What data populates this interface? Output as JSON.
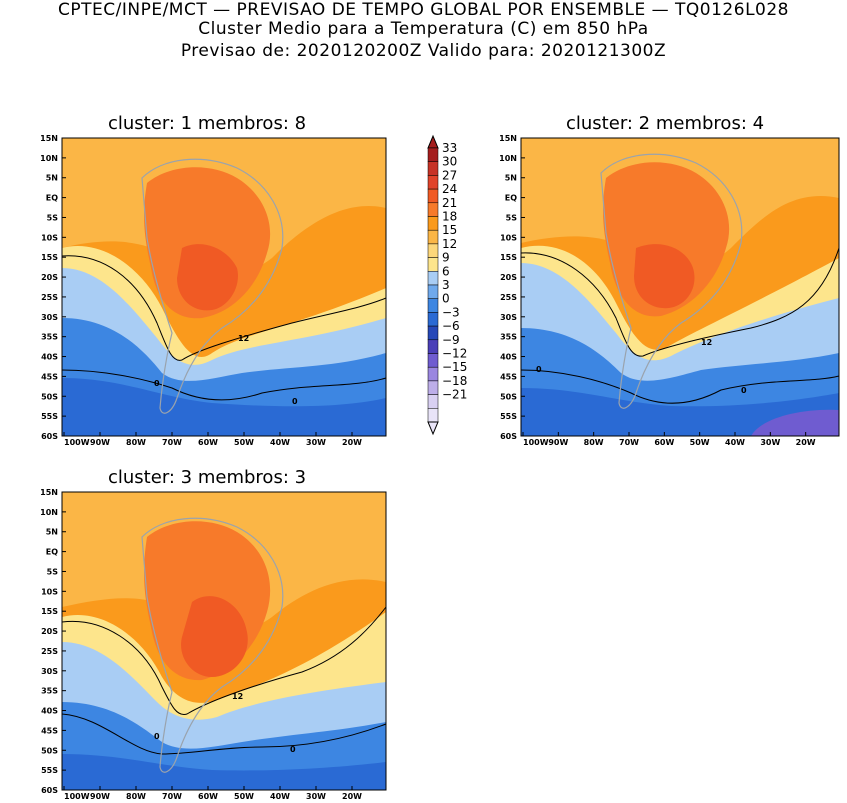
{
  "header": {
    "line1": "CPTEC/INPE/MCT — PREVISAO DE TEMPO GLOBAL POR ENSEMBLE — TQ0126L028",
    "line2": "Cluster Medio para a Temperatura (C) em 850 hPa",
    "line3": "Previsao de: 2020120200Z   Valido para: 2020121300Z"
  },
  "panels": [
    {
      "id": "cluster-1",
      "title": "cluster: 1   membros: 8",
      "contour_labels": [
        "12",
        "0",
        "0"
      ]
    },
    {
      "id": "cluster-2",
      "title": "cluster: 2   membros: 4",
      "contour_labels": [
        "12",
        "0",
        "0"
      ]
    },
    {
      "id": "cluster-3",
      "title": "cluster: 3   membros: 3",
      "contour_labels": [
        "12",
        "0",
        "0"
      ]
    }
  ],
  "axes": {
    "lat_ticks": [
      "15N",
      "10N",
      "5N",
      "EQ",
      "5S",
      "10S",
      "15S",
      "20S",
      "25S",
      "30S",
      "35S",
      "40S",
      "45S",
      "50S",
      "55S",
      "60S"
    ],
    "lon_ticks": [
      "100W",
      "90W",
      "80W",
      "70W",
      "60W",
      "50W",
      "40W",
      "30W",
      "20W"
    ]
  },
  "colorbar": {
    "labels": [
      "33",
      "30",
      "27",
      "24",
      "21",
      "18",
      "15",
      "12",
      "9",
      "6",
      "3",
      "0",
      "-3",
      "-6",
      "-9",
      "-12",
      "-15",
      "-18",
      "-21"
    ],
    "colors": [
      "#a51d1d",
      "#c73226",
      "#e0432a",
      "#f05a24",
      "#f77a2a",
      "#fa9a1c",
      "#fbb646",
      "#fdd77a",
      "#fde58c",
      "#a9cdf4",
      "#6fa9ec",
      "#3d86e2",
      "#2a6ad4",
      "#2648b8",
      "#4a3fb8",
      "#6f5cd0",
      "#9a86e0",
      "#bdaee9",
      "#d9d0f2",
      "#e9e4f8"
    ]
  }
}
